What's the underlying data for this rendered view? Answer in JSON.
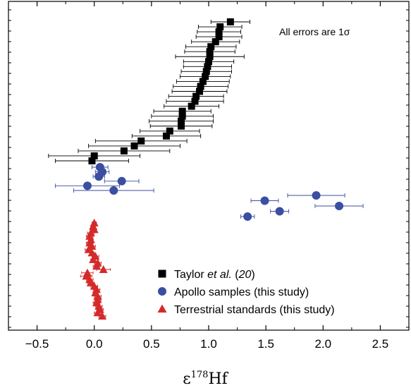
{
  "chart_data": {
    "type": "scatter",
    "title": "",
    "xlabel_main": "ε",
    "xlabel_sup": "178",
    "xlabel_rest": "Hf",
    "ylabel": "",
    "xlim": [
      -0.75,
      2.75
    ],
    "xticks": [
      -0.5,
      0.0,
      0.5,
      1.0,
      1.5,
      2.0,
      2.5
    ],
    "xtick_labels": [
      "−0.5",
      "0.0",
      "0.5",
      "1.0",
      "1.5",
      "2.0",
      "2.5"
    ],
    "grid": false,
    "legend_position": "bottom-right",
    "annotation": "All errors are 1σ",
    "series": [
      {
        "name": "Taylor et al. (20)",
        "name_plain": "Taylor ",
        "name_italic": "et al.",
        "name_paren_open": " (",
        "name_ref": "20",
        "name_paren_close": ")",
        "marker": "square",
        "color": "#000000",
        "points": [
          {
            "x": 1.19,
            "err": 0.17
          },
          {
            "x": 1.1,
            "err": 0.19
          },
          {
            "x": 1.09,
            "err": 0.19
          },
          {
            "x": 1.09,
            "err": 0.2
          },
          {
            "x": 1.06,
            "err": 0.21
          },
          {
            "x": 1.02,
            "err": 0.22
          },
          {
            "x": 1.01,
            "err": 0.22
          },
          {
            "x": 1.01,
            "err": 0.3
          },
          {
            "x": 1.0,
            "err": 0.22
          },
          {
            "x": 0.99,
            "err": 0.21
          },
          {
            "x": 0.98,
            "err": 0.22
          },
          {
            "x": 0.97,
            "err": 0.22
          },
          {
            "x": 0.95,
            "err": 0.23
          },
          {
            "x": 0.93,
            "err": 0.24
          },
          {
            "x": 0.92,
            "err": 0.24
          },
          {
            "x": 0.89,
            "err": 0.24
          },
          {
            "x": 0.88,
            "err": 0.25
          },
          {
            "x": 0.85,
            "err": 0.24
          },
          {
            "x": 0.77,
            "err": 0.25
          },
          {
            "x": 0.77,
            "err": 0.27
          },
          {
            "x": 0.76,
            "err": 0.28
          },
          {
            "x": 0.76,
            "err": 0.27
          },
          {
            "x": 0.66,
            "err": 0.26
          },
          {
            "x": 0.63,
            "err": 0.3
          },
          {
            "x": 0.41,
            "err": 0.4
          },
          {
            "x": 0.35,
            "err": 0.4
          },
          {
            "x": 0.26,
            "err": 0.4
          },
          {
            "x": 0.0,
            "err": 0.4
          },
          {
            "x": -0.02,
            "err": 0.32
          }
        ]
      },
      {
        "name": "Apollo samples (this study)",
        "marker": "circle",
        "color": "#3b4ea2",
        "points": [
          {
            "x": 0.05,
            "err": 0.07,
            "group": 0
          },
          {
            "x": 0.07,
            "err": 0.06,
            "group": 0
          },
          {
            "x": 0.04,
            "err": 0.05,
            "group": 0
          },
          {
            "x": 0.24,
            "err": 0.15,
            "group": 0
          },
          {
            "x": -0.06,
            "err": 0.28,
            "group": 0
          },
          {
            "x": 0.17,
            "err": 0.35,
            "group": 0
          },
          {
            "x": 1.94,
            "err": 0.25,
            "group": 1
          },
          {
            "x": 1.49,
            "err": 0.12,
            "group": 1
          },
          {
            "x": 2.14,
            "err": 0.21,
            "group": 1
          },
          {
            "x": 1.62,
            "err": 0.08,
            "group": 1
          },
          {
            "x": 1.34,
            "err": 0.06,
            "group": 1
          }
        ]
      },
      {
        "name": "Terrestrial standards (this study)",
        "marker": "triangle",
        "color": "#d42a2a",
        "points": [
          {
            "x": 0.0,
            "err": 0.02
          },
          {
            "x": -0.01,
            "err": 0.02
          },
          {
            "x": 0.0,
            "err": 0.02
          },
          {
            "x": -0.03,
            "err": 0.03
          },
          {
            "x": -0.04,
            "err": 0.03
          },
          {
            "x": -0.03,
            "err": 0.02
          },
          {
            "x": -0.04,
            "err": 0.03
          },
          {
            "x": -0.02,
            "err": 0.03
          },
          {
            "x": -0.05,
            "err": 0.03
          },
          {
            "x": -0.02,
            "err": 0.02
          },
          {
            "x": 0.01,
            "err": 0.03
          },
          {
            "x": -0.01,
            "err": 0.02
          },
          {
            "x": 0.03,
            "err": 0.03
          },
          {
            "x": 0.02,
            "err": 0.03
          },
          {
            "x": 0.08,
            "err": 0.06
          },
          {
            "x": -0.06,
            "err": 0.05
          },
          {
            "x": -0.07,
            "err": 0.05
          },
          {
            "x": -0.04,
            "err": 0.03
          },
          {
            "x": -0.03,
            "err": 0.03
          },
          {
            "x": 0.0,
            "err": 0.03
          },
          {
            "x": 0.02,
            "err": 0.03
          },
          {
            "x": 0.01,
            "err": 0.02
          },
          {
            "x": 0.03,
            "err": 0.03
          },
          {
            "x": 0.03,
            "err": 0.03
          },
          {
            "x": 0.02,
            "err": 0.03
          },
          {
            "x": 0.04,
            "err": 0.03
          },
          {
            "x": 0.05,
            "err": 0.03
          },
          {
            "x": 0.03,
            "err": 0.03
          },
          {
            "x": 0.07,
            "err": 0.03
          }
        ]
      }
    ]
  }
}
